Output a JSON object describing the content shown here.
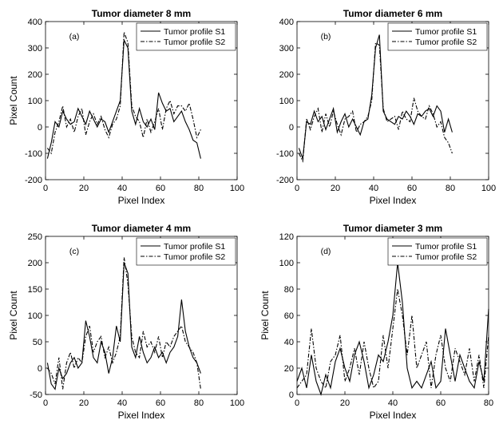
{
  "chart_data": [
    {
      "type": "line",
      "title": "Tumor diameter 8 mm",
      "xlabel": "Pixel Index",
      "ylabel": "Pixel Count",
      "annotation": "(a)",
      "xlim": [
        0,
        100
      ],
      "xticks": [
        0,
        20,
        40,
        60,
        80,
        100
      ],
      "ylim": [
        -200,
        400
      ],
      "yticks": [
        -200,
        -100,
        0,
        100,
        200,
        300,
        400
      ],
      "legend": "upper right",
      "x": [
        1,
        3,
        5,
        7,
        9,
        11,
        13,
        15,
        17,
        19,
        21,
        23,
        25,
        27,
        29,
        31,
        33,
        35,
        37,
        39,
        41,
        43,
        45,
        47,
        49,
        51,
        53,
        55,
        57,
        59,
        61,
        63,
        65,
        67,
        69,
        71,
        73,
        75,
        77,
        79,
        81
      ],
      "series": [
        {
          "name": "Tumor profile S1",
          "color": "#000000",
          "style": "solid",
          "values": [
            -120,
            -60,
            20,
            0,
            60,
            30,
            10,
            20,
            70,
            40,
            10,
            60,
            30,
            0,
            30,
            20,
            -20,
            20,
            60,
            100,
            330,
            300,
            60,
            10,
            70,
            20,
            0,
            30,
            -10,
            130,
            90,
            60,
            70,
            20,
            40,
            60,
            20,
            -10,
            -50,
            -60,
            -120
          ]
        },
        {
          "name": "Tumor profile S2",
          "color": "#000000",
          "style": "dashdot",
          "values": [
            -80,
            -100,
            -20,
            20,
            80,
            0,
            30,
            -20,
            40,
            70,
            -30,
            20,
            50,
            10,
            40,
            -10,
            -40,
            10,
            30,
            80,
            360,
            320,
            80,
            40,
            20,
            -40,
            30,
            -20,
            20,
            70,
            -10,
            70,
            100,
            50,
            80,
            80,
            60,
            90,
            30,
            -40,
            -10
          ]
        }
      ]
    },
    {
      "type": "line",
      "title": "Tumor diameter 6 mm",
      "xlabel": "Pixel Index",
      "annotation": "(b)",
      "xlim": [
        0,
        100
      ],
      "xticks": [
        0,
        20,
        40,
        60,
        80,
        100
      ],
      "ylim": [
        -200,
        400
      ],
      "yticks": [
        -200,
        -100,
        0,
        100,
        200,
        300,
        400
      ],
      "legend": "upper right",
      "x": [
        1,
        3,
        5,
        7,
        9,
        11,
        13,
        15,
        17,
        19,
        21,
        23,
        25,
        27,
        29,
        31,
        33,
        35,
        37,
        39,
        41,
        43,
        45,
        47,
        49,
        51,
        53,
        55,
        57,
        59,
        61,
        63,
        65,
        67,
        69,
        71,
        73,
        75,
        77,
        79,
        81
      ],
      "series": [
        {
          "name": "Tumor profile S1",
          "color": "#000000",
          "style": "solid",
          "values": [
            -80,
            -120,
            20,
            10,
            60,
            20,
            40,
            -10,
            30,
            70,
            -20,
            20,
            50,
            0,
            30,
            0,
            -30,
            20,
            30,
            120,
            300,
            350,
            60,
            30,
            20,
            10,
            40,
            30,
            60,
            40,
            10,
            50,
            40,
            60,
            70,
            40,
            80,
            60,
            -20,
            30,
            -20
          ]
        },
        {
          "name": "Tumor profile S2",
          "color": "#000000",
          "style": "dashdot",
          "values": [
            -100,
            -130,
            30,
            -10,
            40,
            70,
            -20,
            50,
            0,
            60,
            10,
            -30,
            30,
            40,
            60,
            -20,
            10,
            20,
            40,
            100,
            320,
            310,
            70,
            20,
            30,
            40,
            -10,
            60,
            30,
            20,
            110,
            60,
            40,
            30,
            80,
            50,
            0,
            20,
            -40,
            -60,
            -100
          ]
        }
      ]
    },
    {
      "type": "line",
      "title": "Tumor diameter 4 mm",
      "xlabel": "Pixel Index",
      "ylabel": "Pixel Count",
      "annotation": "(c)",
      "xlim": [
        0,
        100
      ],
      "xticks": [
        0,
        20,
        40,
        60,
        80,
        100
      ],
      "ylim": [
        -50,
        250
      ],
      "yticks": [
        -50,
        0,
        50,
        100,
        150,
        200,
        250
      ],
      "legend": "upper right",
      "x": [
        1,
        3,
        5,
        7,
        9,
        11,
        13,
        15,
        17,
        19,
        21,
        23,
        25,
        27,
        29,
        31,
        33,
        35,
        37,
        39,
        41,
        43,
        45,
        47,
        49,
        51,
        53,
        55,
        57,
        59,
        61,
        63,
        65,
        67,
        69,
        71,
        73,
        75,
        77,
        79,
        81
      ],
      "series": [
        {
          "name": "Tumor profile S1",
          "color": "#000000",
          "style": "solid",
          "values": [
            10,
            -30,
            -40,
            0,
            -20,
            -10,
            10,
            20,
            0,
            10,
            90,
            60,
            20,
            10,
            50,
            30,
            -10,
            20,
            80,
            50,
            200,
            180,
            40,
            20,
            60,
            30,
            10,
            20,
            40,
            20,
            30,
            10,
            30,
            40,
            60,
            130,
            70,
            40,
            20,
            10,
            -10
          ]
        },
        {
          "name": "Tumor profile S2",
          "color": "#000000",
          "style": "dashdot",
          "values": [
            0,
            -10,
            -30,
            20,
            -40,
            10,
            30,
            0,
            20,
            10,
            60,
            80,
            30,
            50,
            60,
            20,
            40,
            10,
            30,
            60,
            210,
            160,
            60,
            30,
            20,
            70,
            40,
            50,
            30,
            60,
            20,
            50,
            40,
            60,
            70,
            80,
            50,
            40,
            30,
            10,
            -40
          ]
        }
      ]
    },
    {
      "type": "line",
      "title": "Tumor diameter 3 mm",
      "xlabel": "Pixel Index",
      "ylabel": "Pixel Count",
      "annotation": "(d)",
      "xlim": [
        0,
        80
      ],
      "xticks": [
        0,
        20,
        40,
        60,
        80
      ],
      "ylim": [
        0,
        120
      ],
      "yticks": [
        0,
        20,
        40,
        60,
        80,
        100,
        120
      ],
      "legend": "upper right",
      "x": [
        0,
        2,
        4,
        6,
        8,
        10,
        12,
        14,
        16,
        18,
        20,
        22,
        24,
        26,
        28,
        30,
        32,
        34,
        36,
        38,
        40,
        42,
        44,
        46,
        48,
        50,
        52,
        54,
        56,
        58,
        60,
        62,
        64,
        66,
        68,
        70,
        72,
        74,
        76,
        78,
        80
      ],
      "series": [
        {
          "name": "Tumor profile S1",
          "color": "#000000",
          "style": "solid",
          "values": [
            10,
            20,
            5,
            30,
            10,
            0,
            15,
            5,
            25,
            35,
            20,
            10,
            30,
            40,
            25,
            5,
            15,
            30,
            25,
            40,
            60,
            100,
            70,
            20,
            5,
            10,
            5,
            15,
            25,
            5,
            10,
            50,
            30,
            10,
            30,
            20,
            10,
            5,
            25,
            10,
            65
          ]
        },
        {
          "name": "Tumor profile S2",
          "color": "#000000",
          "style": "dashdot",
          "values": [
            5,
            10,
            15,
            50,
            20,
            10,
            5,
            25,
            30,
            45,
            10,
            20,
            35,
            15,
            40,
            20,
            5,
            10,
            45,
            20,
            50,
            80,
            60,
            30,
            60,
            20,
            30,
            40,
            5,
            30,
            45,
            20,
            10,
            35,
            25,
            15,
            35,
            10,
            30,
            5,
            45
          ]
        }
      ]
    }
  ]
}
